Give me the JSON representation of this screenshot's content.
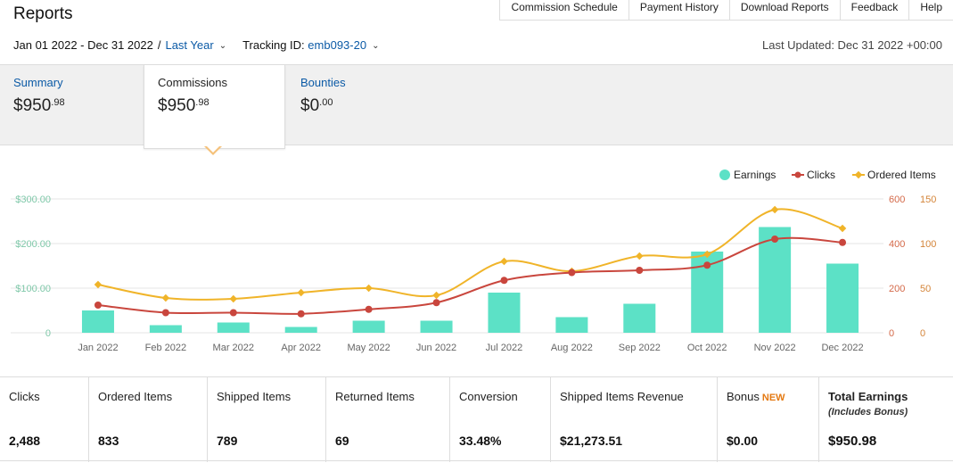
{
  "header": {
    "title": "Reports",
    "nav": [
      "Commission Schedule",
      "Payment History",
      "Download Reports",
      "Feedback",
      "Help"
    ]
  },
  "filters": {
    "date_range": "Jan 01 2022 - Dec 31 2022",
    "separator": "/",
    "period": "Last Year",
    "tracking_label": "Tracking ID:",
    "tracking_id": "emb093-20",
    "last_updated": "Last Updated: Dec 31 2022 +00:00"
  },
  "tabs": [
    {
      "label": "Summary",
      "amount_main": "$950",
      "amount_cents": ".98"
    },
    {
      "label": "Commissions",
      "amount_main": "$950",
      "amount_cents": ".98"
    },
    {
      "label": "Bounties",
      "amount_main": "$0",
      "amount_cents": ".00"
    }
  ],
  "stats": [
    {
      "label": "Clicks",
      "value": "2,488"
    },
    {
      "label": "Ordered Items",
      "value": "833"
    },
    {
      "label": "Shipped Items",
      "value": "789"
    },
    {
      "label": "Returned Items",
      "value": "69"
    },
    {
      "label": "Conversion",
      "value": "33.48%"
    },
    {
      "label": "Shipped Items Revenue",
      "value": "$21,273.51"
    },
    {
      "label": "Bonus",
      "badge": "NEW",
      "value": "$0.00"
    },
    {
      "label": "Total Earnings",
      "sublabel": "(Includes Bonus)",
      "value": "$950.98"
    }
  ],
  "colors": {
    "earnings": "#5ce1c6",
    "clicks": "#c9463d",
    "ordered": "#f0b429",
    "link": "#0b5aa6"
  },
  "chart_data": {
    "type": "bar",
    "categories": [
      "Jan 2022",
      "Feb 2022",
      "Mar 2022",
      "Apr 2022",
      "May 2022",
      "Jun 2022",
      "Jul 2022",
      "Aug 2022",
      "Sep 2022",
      "Oct 2022",
      "Nov 2022",
      "Dec 2022"
    ],
    "legend": [
      "Earnings",
      "Clicks",
      "Ordered Items"
    ],
    "legend_position": "top-right",
    "series": [
      {
        "name": "Earnings",
        "type": "bar",
        "axis": "left",
        "values": [
          50,
          17,
          23,
          13,
          27,
          27,
          90,
          35,
          65,
          182,
          237,
          155
        ]
      },
      {
        "name": "Clicks",
        "type": "line",
        "axis": "right1",
        "values": [
          124,
          90,
          90,
          85,
          105,
          135,
          235,
          270,
          280,
          303,
          420,
          405
        ]
      },
      {
        "name": "Ordered Items",
        "type": "line",
        "axis": "right2",
        "values": [
          54,
          39,
          38,
          45,
          50,
          42,
          80,
          69,
          86,
          88,
          138,
          117
        ]
      }
    ],
    "y_left": {
      "ticks": [
        "$300.00",
        "$200.00",
        "$100.00",
        "0"
      ],
      "range": [
        0,
        300
      ]
    },
    "y_right1": {
      "ticks": [
        "600",
        "400",
        "200",
        "0"
      ],
      "range": [
        0,
        600
      ]
    },
    "y_right2": {
      "ticks": [
        "150",
        "100",
        "50",
        "0"
      ],
      "range": [
        0,
        150
      ]
    },
    "grid": true
  }
}
